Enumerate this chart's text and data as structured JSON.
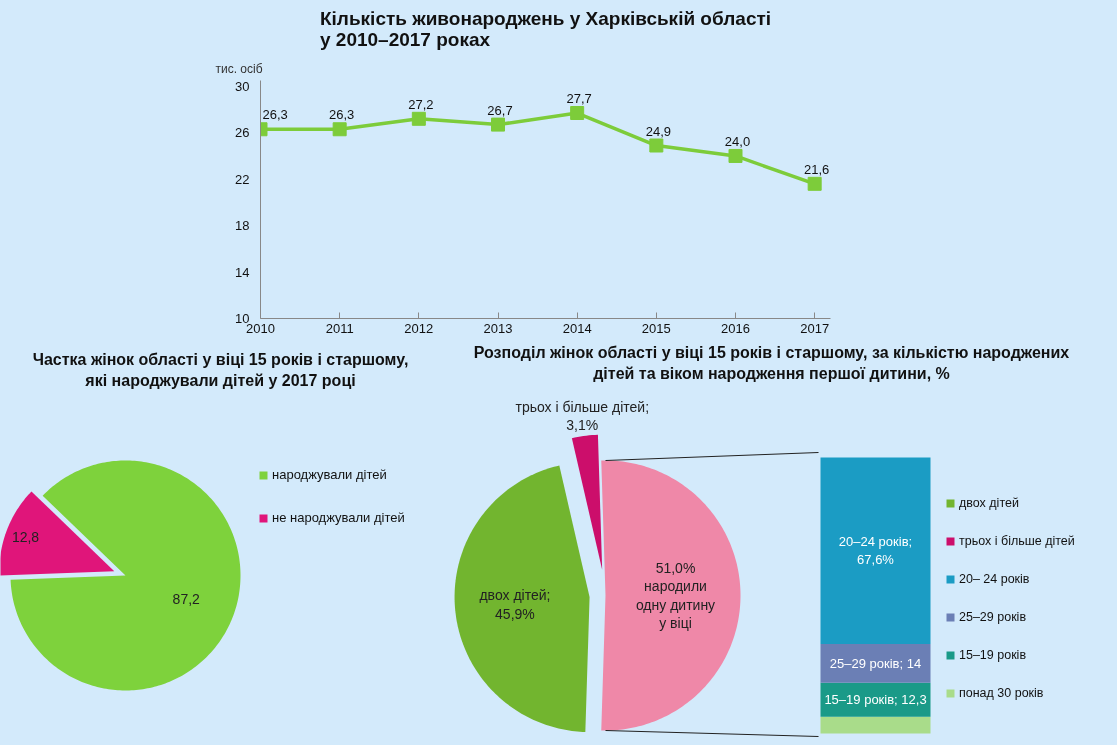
{
  "chart_data": [
    {
      "type": "line",
      "title": "Кількість живонароджень у Харківській області\nу 2010–2017 роках",
      "ylabel": "тис. осіб",
      "x": [
        2010,
        2011,
        2012,
        2013,
        2014,
        2015,
        2016,
        2017
      ],
      "series": [
        {
          "color": "#7dcc3a",
          "values": [
            26.3,
            26.3,
            27.2,
            26.7,
            27.7,
            24.9,
            24.0,
            21.6
          ],
          "value_labels": [
            "26,3",
            "26,3",
            "27,2",
            "26,7",
            "27,7",
            "24,9",
            "24,0",
            "21,6"
          ]
        }
      ],
      "xlim": [
        2010,
        2017.2
      ],
      "xticks": [
        2010,
        2011,
        2012,
        2013,
        2014,
        2015,
        2016,
        2017
      ],
      "ylim": [
        10,
        30.5
      ],
      "yticks": [
        10,
        14,
        18,
        22,
        26,
        30
      ],
      "marker": "square",
      "grid": false,
      "legend": false
    },
    {
      "type": "pie",
      "title": "Частка жінок області у віці 15 років і старшому,\nякі народжували дітей у 2017 році",
      "categories": [
        "народжували дітей",
        "не народжували дітей"
      ],
      "values": [
        87.2,
        12.8
      ],
      "colors": [
        "#7ed23c",
        "#e0157a"
      ],
      "value_labels": [
        "87,2",
        "12,8"
      ],
      "legend": "right"
    },
    {
      "type": "pie",
      "title": "Розподіл жінок області у віці 15 років і старшому, за кількістю народжених\nдітей та віком народження першої дитини, %",
      "categories": [
        null,
        "двох дітей",
        "трьох і більше дітей"
      ],
      "values": [
        51.0,
        45.9,
        3.1
      ],
      "colors": [
        "#ef88a8",
        "#72b52f",
        "#cc0e6b"
      ],
      "value_labels": [
        "51,0%\nнародили\nодну дитину\nу віці",
        "двох дітей;\n45,9%",
        "трьох і більше дітей;\n3,1%"
      ],
      "legend": "right"
    },
    {
      "type": "bar",
      "stacked": true,
      "categories": [
        null
      ],
      "tick_labels": false,
      "legend": "right",
      "series": [
        {
          "name": "понад 30 років",
          "color": "#a9dc8a",
          "values": [
            6.1
          ],
          "value_labels": [
            null
          ]
        },
        {
          "name": "15–19 років",
          "color": "#1a9a88",
          "values": [
            12.3
          ],
          "value_labels": [
            "15–19 років; 12,3"
          ]
        },
        {
          "name": "25–29 років",
          "color": "#6b7fb5",
          "values": [
            14
          ],
          "value_labels": [
            "25–29 років; 14"
          ]
        },
        {
          "name": "20– 24 років",
          "color": "#1b9cc4",
          "values": [
            67.6
          ],
          "value_labels": [
            "20–24 років;\n67,6%"
          ]
        }
      ]
    }
  ]
}
